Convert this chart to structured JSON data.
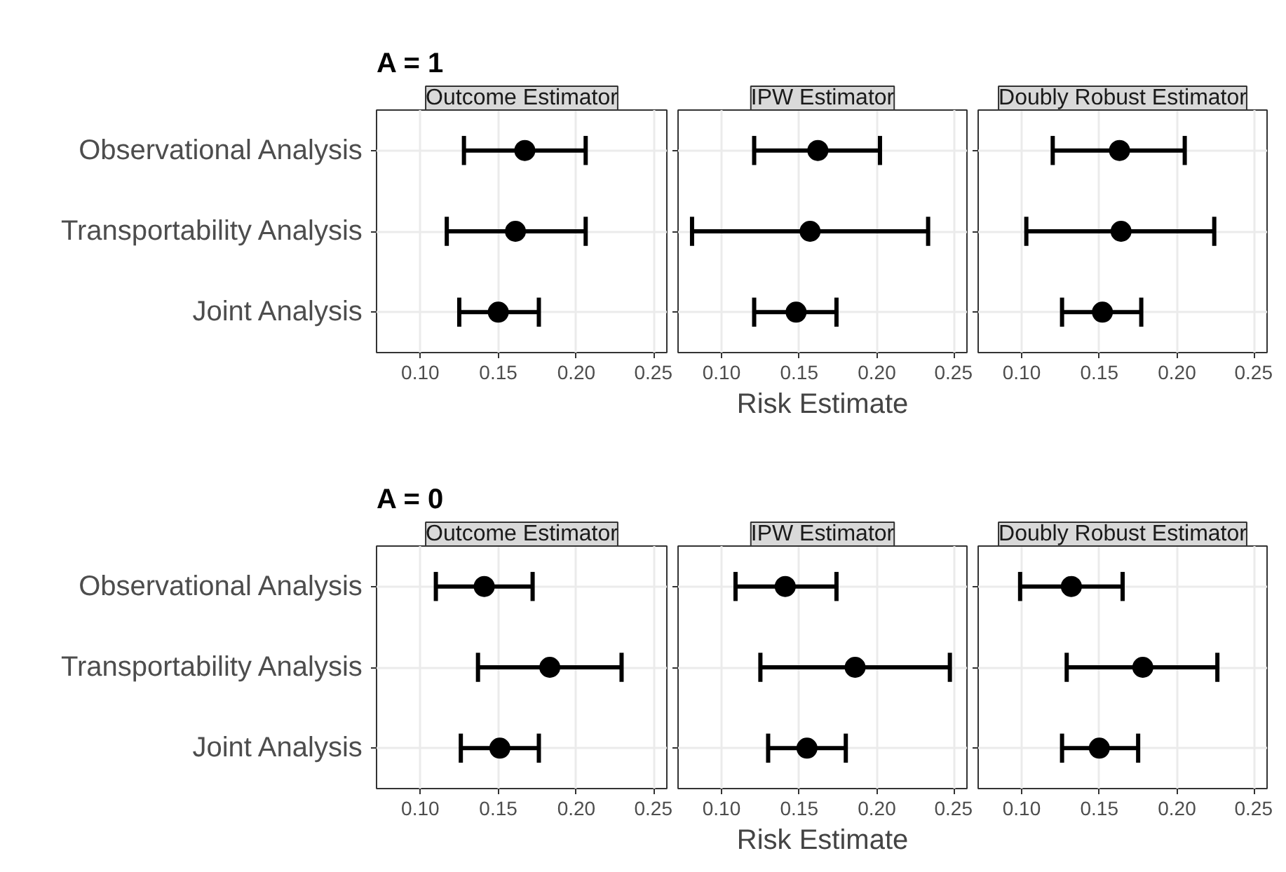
{
  "chart_data": [
    {
      "type": "scatter",
      "orientation": "horizontal",
      "title": "Outcome Estimator",
      "annotations": [
        "A = 1"
      ],
      "categories": [
        "Observational Analysis",
        "Transportability Analysis",
        "Joint Analysis"
      ],
      "values": [
        0.167,
        0.161,
        0.15
      ],
      "errors": [
        [
          0.128,
          0.206
        ],
        [
          0.117,
          0.206
        ],
        [
          0.125,
          0.176
        ]
      ],
      "color": "#000000",
      "marker": "circle",
      "grid": true,
      "xlim": [
        0.072,
        0.258
      ],
      "xticks": [
        {
          "value": 0.1,
          "label": "0.10"
        },
        {
          "value": 0.15,
          "label": "0.15"
        },
        {
          "value": 0.2,
          "label": "0.20"
        },
        {
          "value": 0.25,
          "label": "0.25"
        }
      ]
    },
    {
      "type": "scatter",
      "orientation": "horizontal",
      "title": "IPW Estimator",
      "xlabel": "Risk Estimate",
      "tick_labels": "x",
      "categories": [
        null,
        null,
        null
      ],
      "values": [
        0.162,
        0.157,
        0.148
      ],
      "errors": [
        [
          0.121,
          0.202
        ],
        [
          0.081,
          0.233
        ],
        [
          0.121,
          0.174
        ]
      ],
      "color": "#000000",
      "marker": "circle",
      "grid": true,
      "xlim": [
        0.072,
        0.258
      ],
      "xticks": [
        {
          "value": 0.1,
          "label": "0.10"
        },
        {
          "value": 0.15,
          "label": "0.15"
        },
        {
          "value": 0.2,
          "label": "0.20"
        },
        {
          "value": 0.25,
          "label": "0.25"
        }
      ]
    },
    {
      "type": "scatter",
      "orientation": "horizontal",
      "title": "Doubly Robust Estimator",
      "tick_labels": "x",
      "categories": [
        null,
        null,
        null
      ],
      "values": [
        0.163,
        0.164,
        0.152
      ],
      "errors": [
        [
          0.12,
          0.205
        ],
        [
          0.103,
          0.224
        ],
        [
          0.126,
          0.177
        ]
      ],
      "color": "#000000",
      "marker": "circle",
      "grid": true,
      "xlim": [
        0.072,
        0.258
      ],
      "xticks": [
        {
          "value": 0.1,
          "label": "0.10"
        },
        {
          "value": 0.15,
          "label": "0.15"
        },
        {
          "value": 0.2,
          "label": "0.20"
        },
        {
          "value": 0.25,
          "label": "0.25"
        }
      ]
    },
    {
      "type": "scatter",
      "orientation": "horizontal",
      "title": "Outcome Estimator",
      "annotations": [
        "A = 0"
      ],
      "categories": [
        "Observational Analysis",
        "Transportability Analysis",
        "Joint Analysis"
      ],
      "values": [
        0.141,
        0.183,
        0.151
      ],
      "errors": [
        [
          0.11,
          0.172
        ],
        [
          0.137,
          0.229
        ],
        [
          0.126,
          0.176
        ]
      ],
      "color": "#000000",
      "marker": "circle",
      "grid": true,
      "xlim": [
        0.072,
        0.258
      ],
      "xticks": [
        {
          "value": 0.1,
          "label": "0.10"
        },
        {
          "value": 0.15,
          "label": "0.15"
        },
        {
          "value": 0.2,
          "label": "0.20"
        },
        {
          "value": 0.25,
          "label": "0.25"
        }
      ]
    },
    {
      "type": "scatter",
      "orientation": "horizontal",
      "title": "IPW Estimator",
      "xlabel": "Risk Estimate",
      "tick_labels": "x",
      "categories": [
        null,
        null,
        null
      ],
      "values": [
        0.141,
        0.186,
        0.155
      ],
      "errors": [
        [
          0.109,
          0.174
        ],
        [
          0.125,
          0.247
        ],
        [
          0.13,
          0.18
        ]
      ],
      "color": "#000000",
      "marker": "circle",
      "grid": true,
      "xlim": [
        0.072,
        0.258
      ],
      "xticks": [
        {
          "value": 0.1,
          "label": "0.10"
        },
        {
          "value": 0.15,
          "label": "0.15"
        },
        {
          "value": 0.2,
          "label": "0.20"
        },
        {
          "value": 0.25,
          "label": "0.25"
        }
      ]
    },
    {
      "type": "scatter",
      "orientation": "horizontal",
      "title": "Doubly Robust Estimator",
      "tick_labels": "x",
      "categories": [
        null,
        null,
        null
      ],
      "values": [
        0.132,
        0.178,
        0.15
      ],
      "errors": [
        [
          0.099,
          0.165
        ],
        [
          0.129,
          0.226
        ],
        [
          0.126,
          0.175
        ]
      ],
      "color": "#000000",
      "marker": "circle",
      "grid": true,
      "xlim": [
        0.072,
        0.258
      ],
      "xticks": [
        {
          "value": 0.1,
          "label": "0.10"
        },
        {
          "value": 0.15,
          "label": "0.15"
        },
        {
          "value": 0.2,
          "label": "0.20"
        },
        {
          "value": 0.25,
          "label": "0.25"
        }
      ]
    }
  ]
}
